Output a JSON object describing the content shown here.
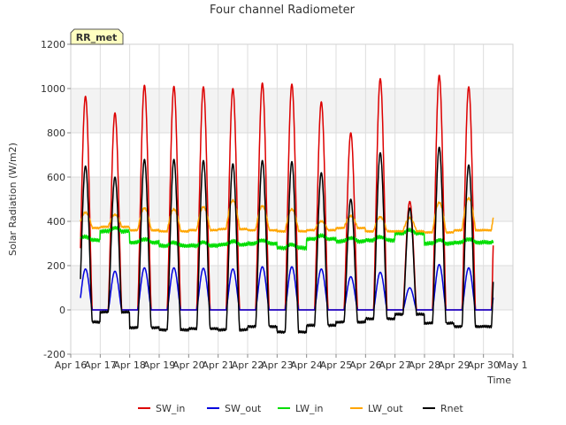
{
  "chart_data": {
    "type": "line",
    "title": "Four channel Radiometer",
    "xlabel": "Time",
    "ylabel": "Solar Radiation (W/m2)",
    "station_label": "RR_met",
    "ylim": [
      -200,
      1200
    ],
    "yticks": [
      -200,
      0,
      200,
      400,
      600,
      800,
      1000,
      1200
    ],
    "xlim": [
      16,
      31
    ],
    "xticks": [
      {
        "value": 16,
        "label": "Apr 16"
      },
      {
        "value": 17,
        "label": "Apr 17"
      },
      {
        "value": 18,
        "label": "Apr 18"
      },
      {
        "value": 19,
        "label": "Apr 19"
      },
      {
        "value": 20,
        "label": "Apr 20"
      },
      {
        "value": 21,
        "label": "Apr 21"
      },
      {
        "value": 22,
        "label": "Apr 22"
      },
      {
        "value": 23,
        "label": "Apr 23"
      },
      {
        "value": 24,
        "label": "Apr 24"
      },
      {
        "value": 25,
        "label": "Apr 25"
      },
      {
        "value": 26,
        "label": "Apr 26"
      },
      {
        "value": 27,
        "label": "Apr 27"
      },
      {
        "value": 28,
        "label": "Apr 28"
      },
      {
        "value": 29,
        "label": "Apr 29"
      },
      {
        "value": 30,
        "label": "Apr 30"
      },
      {
        "value": 31,
        "label": "May 1"
      }
    ],
    "legend_position": "bottom-center",
    "series": [
      {
        "name": "SW_in",
        "color": "#dd0000"
      },
      {
        "name": "SW_out",
        "color": "#0000dd"
      },
      {
        "name": "LW_in",
        "color": "#00dd00"
      },
      {
        "name": "LW_out",
        "color": "#ffa500"
      },
      {
        "name": "Rnet",
        "color": "#000000"
      }
    ],
    "data_range": {
      "start_day": 16.33,
      "end_day": 30.33,
      "noon_offset": 0.5
    },
    "daily": [
      {
        "day": 16,
        "sw_in_peak": 965,
        "sw_out_peak": 185,
        "lw_in_base": 315,
        "lw_out_base": 370,
        "lw_out_peak": 440,
        "rnet_peak": 650,
        "rnet_night": -55
      },
      {
        "day": 17,
        "sw_in_peak": 890,
        "sw_out_peak": 175,
        "lw_in_base": 355,
        "lw_out_base": 375,
        "lw_out_peak": 430,
        "rnet_peak": 600,
        "rnet_night": -10
      },
      {
        "day": 18,
        "sw_in_peak": 1015,
        "sw_out_peak": 190,
        "lw_in_base": 305,
        "lw_out_base": 360,
        "lw_out_peak": 460,
        "rnet_peak": 680,
        "rnet_night": -80
      },
      {
        "day": 19,
        "sw_in_peak": 1010,
        "sw_out_peak": 190,
        "lw_in_base": 290,
        "lw_out_base": 355,
        "lw_out_peak": 455,
        "rnet_peak": 680,
        "rnet_night": -90
      },
      {
        "day": 20,
        "sw_in_peak": 1008,
        "sw_out_peak": 188,
        "lw_in_base": 290,
        "lw_out_base": 360,
        "lw_out_peak": 465,
        "rnet_peak": 675,
        "rnet_night": -85
      },
      {
        "day": 21,
        "sw_in_peak": 1000,
        "sw_out_peak": 185,
        "lw_in_base": 295,
        "lw_out_base": 365,
        "lw_out_peak": 495,
        "rnet_peak": 660,
        "rnet_night": -90
      },
      {
        "day": 22,
        "sw_in_peak": 1025,
        "sw_out_peak": 195,
        "lw_in_base": 300,
        "lw_out_base": 360,
        "lw_out_peak": 470,
        "rnet_peak": 675,
        "rnet_night": -75
      },
      {
        "day": 23,
        "sw_in_peak": 1020,
        "sw_out_peak": 195,
        "lw_in_base": 280,
        "lw_out_base": 355,
        "lw_out_peak": 455,
        "rnet_peak": 670,
        "rnet_night": -100
      },
      {
        "day": 24,
        "sw_in_peak": 940,
        "sw_out_peak": 185,
        "lw_in_base": 320,
        "lw_out_base": 360,
        "lw_out_peak": 400,
        "rnet_peak": 620,
        "rnet_night": -70
      },
      {
        "day": 25,
        "sw_in_peak": 800,
        "sw_out_peak": 150,
        "lw_in_base": 310,
        "lw_out_base": 370,
        "lw_out_peak": 425,
        "rnet_peak": 500,
        "rnet_night": -55
      },
      {
        "day": 26,
        "sw_in_peak": 1045,
        "sw_out_peak": 170,
        "lw_in_base": 315,
        "lw_out_base": 355,
        "lw_out_peak": 420,
        "rnet_peak": 710,
        "rnet_night": -40
      },
      {
        "day": 27,
        "sw_in_peak": 490,
        "sw_out_peak": 100,
        "lw_in_base": 345,
        "lw_out_base": 355,
        "lw_out_peak": 415,
        "rnet_peak": 460,
        "rnet_night": -20
      },
      {
        "day": 28,
        "sw_in_peak": 1060,
        "sw_out_peak": 205,
        "lw_in_base": 300,
        "lw_out_base": 350,
        "lw_out_peak": 485,
        "rnet_peak": 735,
        "rnet_night": -60
      },
      {
        "day": 29,
        "sw_in_peak": 1008,
        "sw_out_peak": 190,
        "lw_in_base": 305,
        "lw_out_base": 360,
        "lw_out_peak": 505,
        "rnet_peak": 655,
        "rnet_night": -75
      }
    ]
  }
}
